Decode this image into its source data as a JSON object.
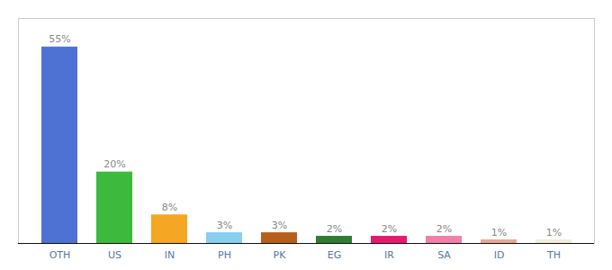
{
  "chart_data": {
    "type": "bar",
    "categories": [
      "OTH",
      "US",
      "IN",
      "PH",
      "PK",
      "EG",
      "IR",
      "SA",
      "ID",
      "TH"
    ],
    "values": [
      55,
      20,
      8,
      3,
      3,
      2,
      2,
      2,
      1,
      1
    ],
    "value_labels": [
      "55%",
      "20%",
      "8%",
      "3%",
      "3%",
      "2%",
      "2%",
      "2%",
      "1%",
      "1%"
    ],
    "colors": [
      "#4d72d4",
      "#3dba3d",
      "#f5a623",
      "#87cef0",
      "#b5601a",
      "#2e7d32",
      "#e8186c",
      "#f080a8",
      "#e8a898",
      "#f0edd8"
    ],
    "ylim": [
      0,
      63
    ],
    "data_labels": true,
    "tick_labels": "x"
  }
}
